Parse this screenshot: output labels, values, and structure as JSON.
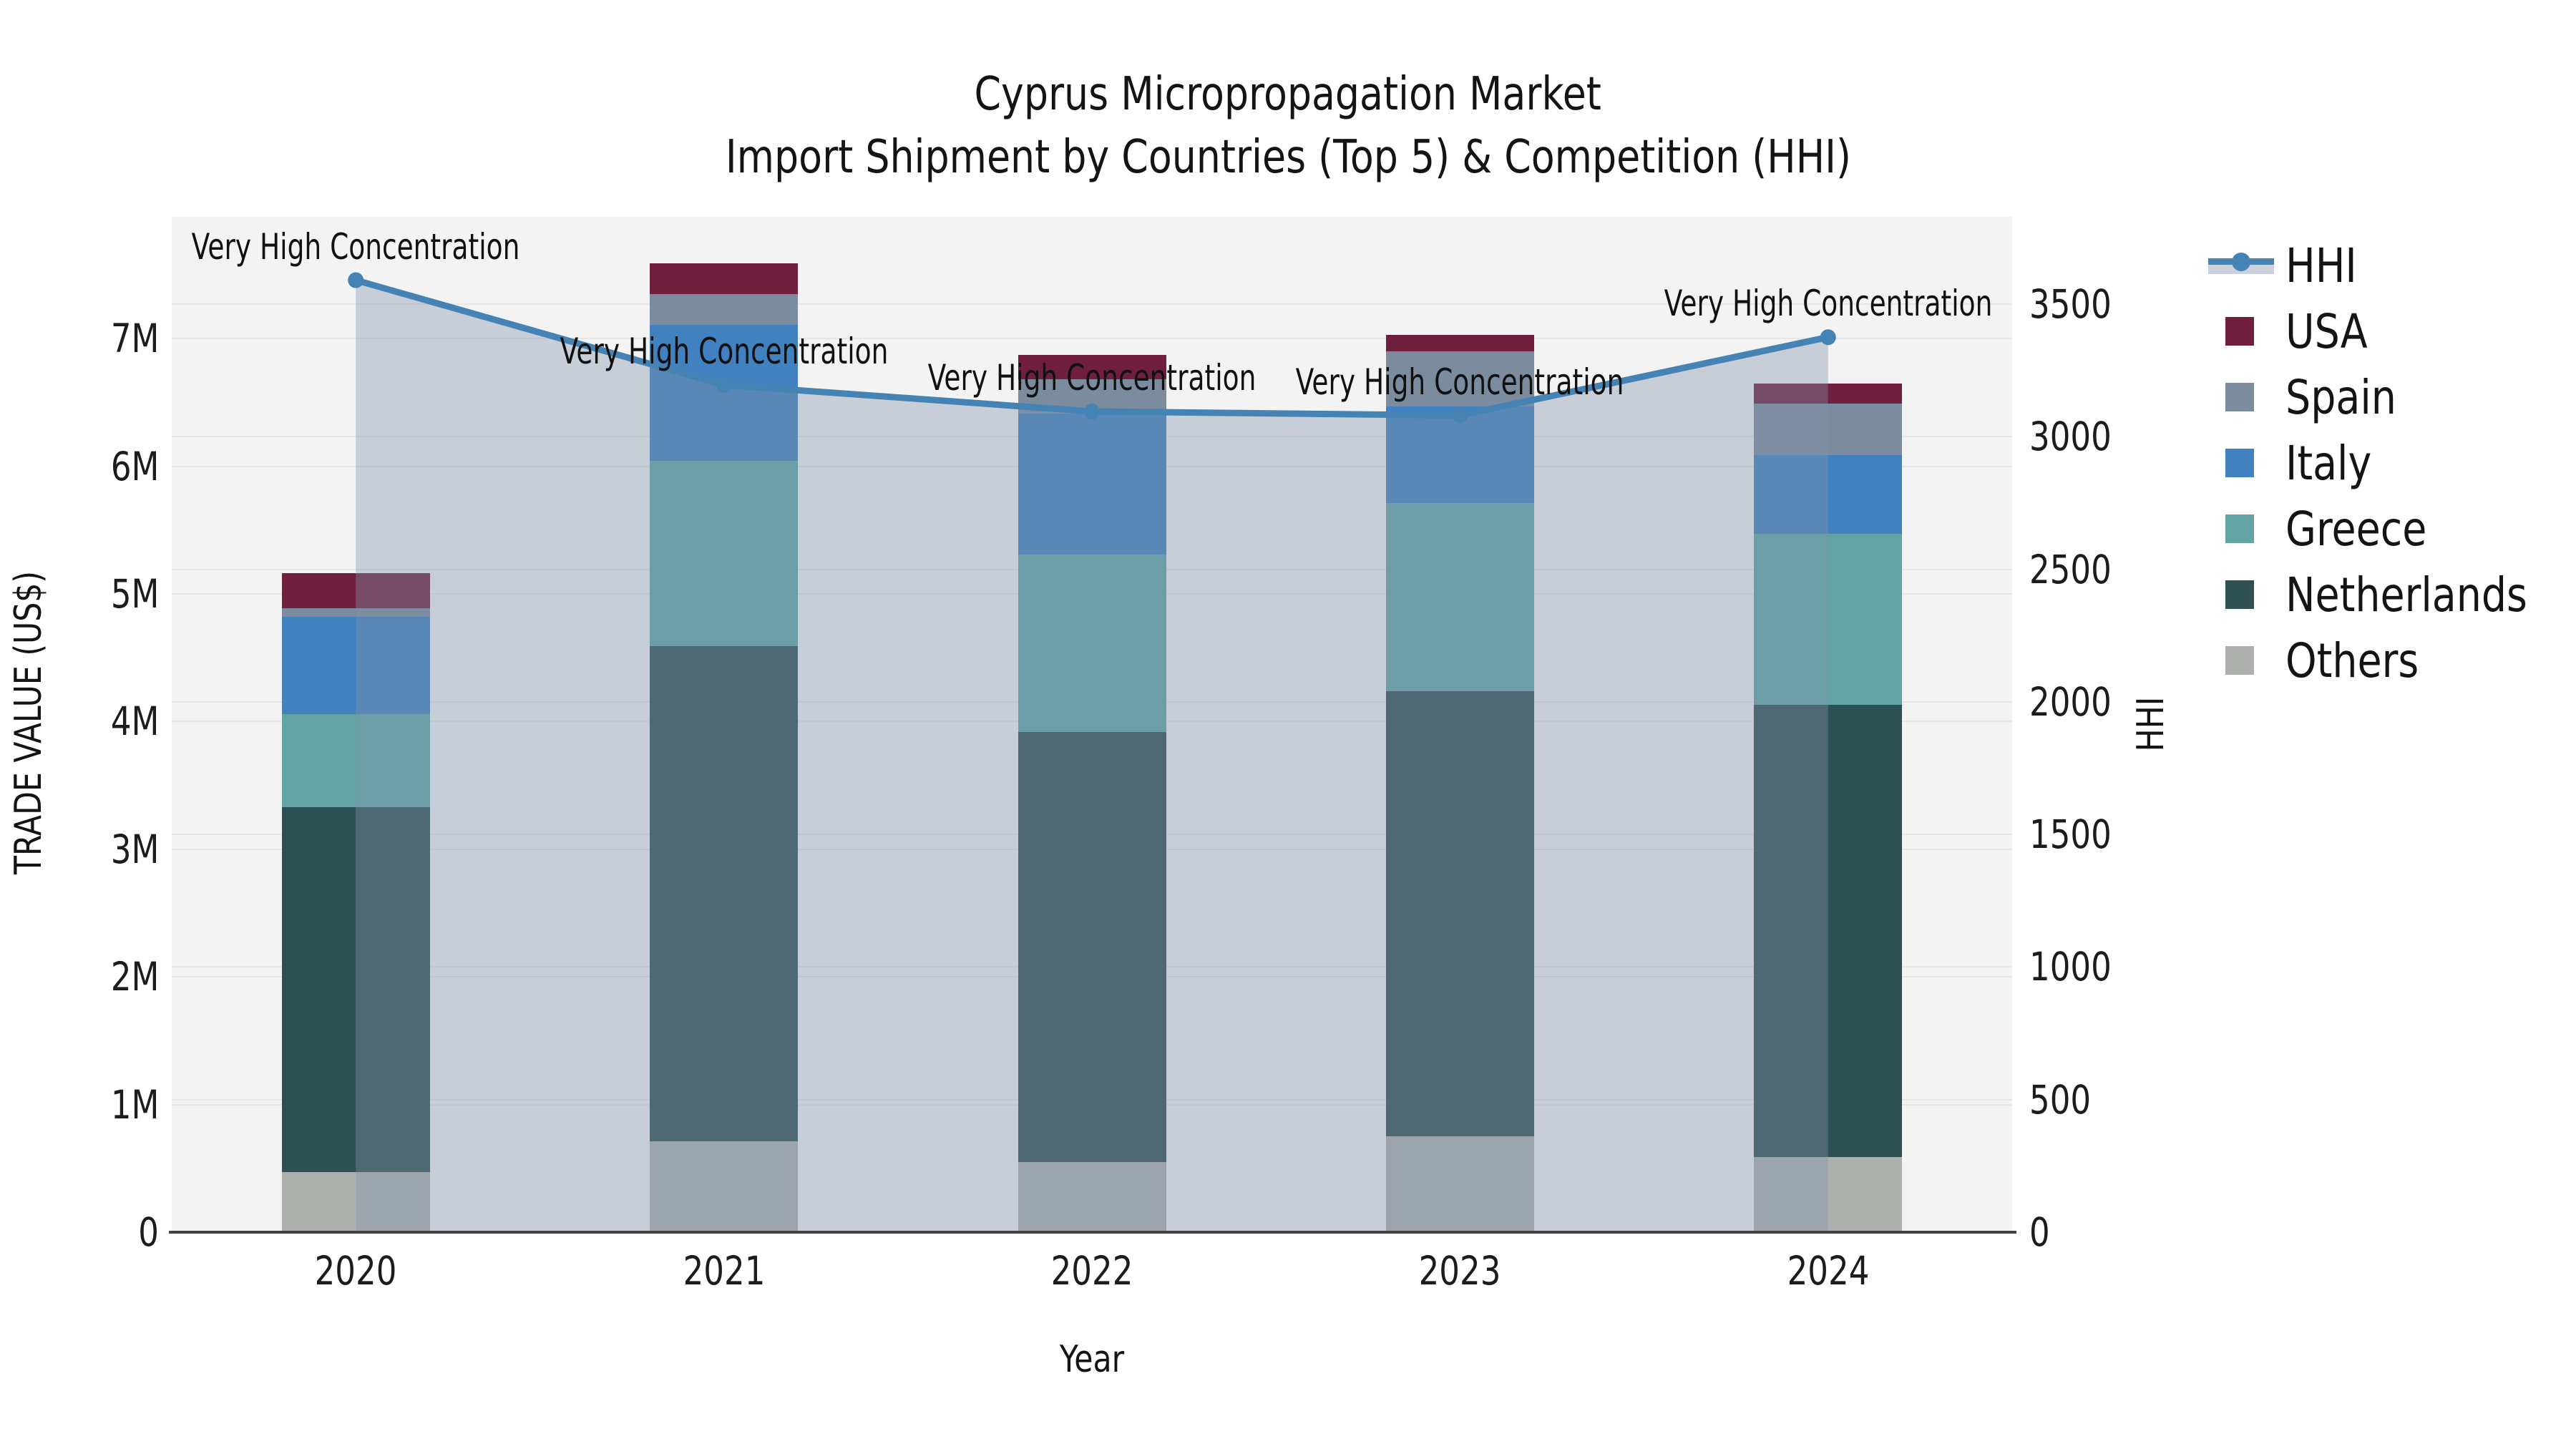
{
  "title": {
    "line1": "Cyprus Micropropagation Market",
    "line2": "Import Shipment by Countries (Top 5) & Competition (HHI)"
  },
  "axes": {
    "y_left_label": "TRADE VALUE (US$)",
    "y_right_label": "HHI",
    "x_label": "Year"
  },
  "annotation_label": "Very High Concentration",
  "chart_data": {
    "type": "bar",
    "subtype": "stacked-bars-with-dual-axis-line",
    "categories": [
      "2020",
      "2021",
      "2022",
      "2023",
      "2024"
    ],
    "bar_unit": "million US$",
    "series": [
      {
        "name": "Others",
        "color": "#aeb0ad",
        "values": [
          0.47,
          0.71,
          0.55,
          0.75,
          0.59
        ]
      },
      {
        "name": "Netherlands",
        "color": "#2f5053",
        "values": [
          2.86,
          3.88,
          3.37,
          3.49,
          3.54
        ]
      },
      {
        "name": "Greece",
        "color": "#62a4a4",
        "values": [
          0.73,
          1.45,
          1.39,
          1.47,
          1.34
        ]
      },
      {
        "name": "Italy",
        "color": "#4181bf",
        "values": [
          0.76,
          1.07,
          1.1,
          0.76,
          0.62
        ]
      },
      {
        "name": "Spain",
        "color": "#7b8c9f",
        "values": [
          0.07,
          0.24,
          0.27,
          0.43,
          0.4
        ]
      },
      {
        "name": "USA",
        "color": "#701f3f",
        "values": [
          0.27,
          0.24,
          0.19,
          0.13,
          0.16
        ]
      }
    ],
    "bar_totals": [
      5.16,
      7.59,
      6.87,
      7.03,
      6.65
    ],
    "hhi_line": {
      "name": "HHI",
      "color": "#4583b4",
      "area_fill": "rgba(130,146,172,0.38)",
      "values": [
        3590,
        3195,
        3095,
        3080,
        3375
      ],
      "annotations": [
        "Very High Concentration",
        "Very High Concentration",
        "Very High Concentration",
        "Very High Concentration",
        "Very High Concentration"
      ]
    },
    "left_axis": {
      "ticks": [
        "0",
        "1M",
        "2M",
        "3M",
        "4M",
        "5M",
        "6M",
        "7M"
      ],
      "tick_values": [
        0,
        1,
        2,
        3,
        4,
        5,
        6,
        7
      ],
      "range": [
        0,
        7.95
      ]
    },
    "right_axis": {
      "ticks": [
        "0",
        "500",
        "1000",
        "1500",
        "2000",
        "2500",
        "3000",
        "3500"
      ],
      "tick_values": [
        0,
        500,
        1000,
        1500,
        2000,
        2500,
        3000,
        3500
      ],
      "range": [
        0,
        3830
      ]
    },
    "legend_order": [
      "HHI",
      "USA",
      "Spain",
      "Italy",
      "Greece",
      "Netherlands",
      "Others"
    ],
    "legend_position": "right",
    "grid": true,
    "plot_background": "#f3f3f3"
  }
}
